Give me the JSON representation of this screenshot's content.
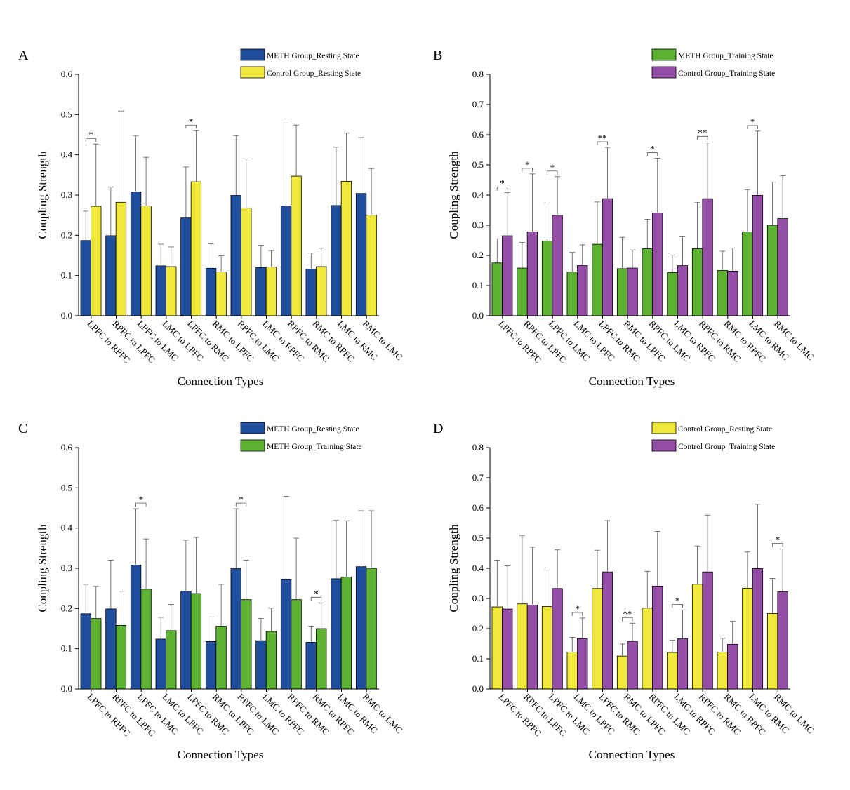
{
  "colors": {
    "meth_rest": "#1f4e9c",
    "ctrl_rest": "#f0e83a",
    "meth_train": "#5db133",
    "ctrl_train": "#944ea6"
  },
  "chart_data": [
    {
      "type": "bar",
      "panel_label": "A",
      "categories": [
        "LPFC to RPFC",
        "RPFC to LPFC",
        "LPFC to LMC",
        "LMC to LPFC",
        "LPFC to RMC",
        "RMC to LPFC",
        "RPFC to LMC",
        "LMC to RPFC",
        "RPFC to RMC",
        "RMC to RPFC",
        "LMC to RMC",
        "RMC to LMC"
      ],
      "xlabel": "Connection Types",
      "ylabel": "Coupling Strength",
      "ylim": [
        0,
        0.6
      ],
      "yticks": [
        "0.0",
        "0.1",
        "0.2",
        "0.3",
        "0.4",
        "0.5",
        "0.6"
      ],
      "ytick_values": [
        0,
        0.1,
        0.2,
        0.3,
        0.4,
        0.5,
        0.6
      ],
      "legend_position": "top-right",
      "series": [
        {
          "name": "METH Group_Resting State",
          "color_key": "meth_rest",
          "values": [
            0.187,
            0.199,
            0.308,
            0.124,
            0.243,
            0.118,
            0.299,
            0.12,
            0.273,
            0.116,
            0.274,
            0.304
          ],
          "errors": [
            0.073,
            0.121,
            0.14,
            0.054,
            0.127,
            0.061,
            0.149,
            0.055,
            0.206,
            0.04,
            0.145,
            0.139
          ]
        },
        {
          "name": "Control Group_Resting State",
          "color_key": "ctrl_rest",
          "values": [
            0.272,
            0.282,
            0.273,
            0.122,
            0.333,
            0.109,
            0.268,
            0.121,
            0.347,
            0.122,
            0.334,
            0.25
          ],
          "errors": [
            0.155,
            0.227,
            0.121,
            0.049,
            0.127,
            0.04,
            0.122,
            0.041,
            0.127,
            0.046,
            0.12,
            0.116
          ]
        }
      ],
      "significance": [
        {
          "index": 0,
          "label": "*"
        },
        {
          "index": 4,
          "label": "*"
        }
      ]
    },
    {
      "type": "bar",
      "panel_label": "B",
      "categories": [
        "LPFC to RPFC",
        "RPFC to LPFC",
        "LPFC to LMC",
        "LMC to LPFC",
        "LPFC to RMC",
        "RMC to LPFC",
        "RPFC to LMC",
        "LMC to RPFC",
        "RPFC to RMC",
        "RMC to RPFC",
        "LMC to RMC",
        "RMC to LMC"
      ],
      "xlabel": "Connection Types",
      "ylabel": "Coupling Strength",
      "ylim": [
        0,
        0.8
      ],
      "yticks": [
        "0.0",
        "0.1",
        "0.2",
        "0.3",
        "0.4",
        "0.5",
        "0.6",
        "0.7",
        "0.8"
      ],
      "ytick_values": [
        0,
        0.1,
        0.2,
        0.3,
        0.4,
        0.5,
        0.6,
        0.7,
        0.8
      ],
      "legend_position": "top-right",
      "series": [
        {
          "name": "METH Group_Training State",
          "color_key": "meth_train",
          "values": [
            0.175,
            0.158,
            0.248,
            0.145,
            0.237,
            0.156,
            0.222,
            0.143,
            0.222,
            0.15,
            0.278,
            0.3
          ],
          "errors": [
            0.08,
            0.085,
            0.125,
            0.065,
            0.14,
            0.104,
            0.098,
            0.058,
            0.153,
            0.064,
            0.14,
            0.143
          ]
        },
        {
          "name": "Control Group_Training State",
          "color_key": "ctrl_train",
          "values": [
            0.265,
            0.278,
            0.333,
            0.167,
            0.388,
            0.158,
            0.341,
            0.166,
            0.388,
            0.148,
            0.399,
            0.322
          ],
          "errors": [
            0.143,
            0.192,
            0.128,
            0.068,
            0.17,
            0.06,
            0.181,
            0.096,
            0.188,
            0.076,
            0.213,
            0.142
          ]
        }
      ],
      "significance": [
        {
          "index": 0,
          "label": "*"
        },
        {
          "index": 1,
          "label": "*"
        },
        {
          "index": 2,
          "label": "*"
        },
        {
          "index": 4,
          "label": "**"
        },
        {
          "index": 6,
          "label": "*"
        },
        {
          "index": 8,
          "label": "**"
        },
        {
          "index": 10,
          "label": "*"
        }
      ]
    },
    {
      "type": "bar",
      "panel_label": "C",
      "categories": [
        "LPFC to RPFC",
        "RPFC to LPFC",
        "LPFC to LMC",
        "LMC to LPFC",
        "LPFC to RMC",
        "RMC to LPFC",
        "RPFC to LMC",
        "LMC to RPFC",
        "RPFC to RMC",
        "RMC to RPFC",
        "LMC to RMC",
        "RMC to LMC"
      ],
      "xlabel": "Connection Types",
      "ylabel": "Coupling Strength",
      "ylim": [
        0,
        0.6
      ],
      "yticks": [
        "0.0",
        "0.1",
        "0.2",
        "0.3",
        "0.4",
        "0.5",
        "0.6"
      ],
      "ytick_values": [
        0,
        0.1,
        0.2,
        0.3,
        0.4,
        0.5,
        0.6
      ],
      "legend_position": "top-right",
      "series": [
        {
          "name": "METH Group_Resting State",
          "color_key": "meth_rest",
          "values": [
            0.187,
            0.199,
            0.308,
            0.124,
            0.243,
            0.118,
            0.299,
            0.12,
            0.273,
            0.116,
            0.274,
            0.304
          ],
          "errors": [
            0.073,
            0.121,
            0.14,
            0.054,
            0.127,
            0.061,
            0.149,
            0.055,
            0.206,
            0.04,
            0.145,
            0.139
          ]
        },
        {
          "name": "METH Group_Training State",
          "color_key": "meth_train",
          "values": [
            0.175,
            0.158,
            0.248,
            0.145,
            0.237,
            0.156,
            0.222,
            0.143,
            0.222,
            0.15,
            0.278,
            0.3
          ],
          "errors": [
            0.08,
            0.085,
            0.125,
            0.065,
            0.14,
            0.104,
            0.098,
            0.058,
            0.153,
            0.064,
            0.14,
            0.143
          ]
        }
      ],
      "significance": [
        {
          "index": 2,
          "label": "*"
        },
        {
          "index": 6,
          "label": "*"
        },
        {
          "index": 9,
          "label": "*"
        }
      ]
    },
    {
      "type": "bar",
      "panel_label": "D",
      "categories": [
        "LPFC to RPFC",
        "RPFC to LPFC",
        "LPFC to LMC",
        "LMC to LPFC",
        "LPFC to RMC",
        "RMC to LPFC",
        "RPFC to LMC",
        "LMC to RPFC",
        "RPFC to RMC",
        "RMC to RPFC",
        "LMC to RMC",
        "RMC to LMC"
      ],
      "xlabel": "Connection Types",
      "ylabel": "Coupling Strength",
      "ylim": [
        0,
        0.8
      ],
      "yticks": [
        "0.0",
        "0.1",
        "0.2",
        "0.3",
        "0.4",
        "0.5",
        "0.6",
        "0.7",
        "0.8"
      ],
      "ytick_values": [
        0,
        0.1,
        0.2,
        0.3,
        0.4,
        0.5,
        0.6,
        0.7,
        0.8
      ],
      "legend_position": "top-right",
      "series": [
        {
          "name": "Control Group_Resting State",
          "color_key": "ctrl_rest",
          "values": [
            0.272,
            0.282,
            0.273,
            0.122,
            0.333,
            0.109,
            0.268,
            0.121,
            0.347,
            0.122,
            0.334,
            0.25
          ],
          "errors": [
            0.155,
            0.227,
            0.121,
            0.049,
            0.127,
            0.04,
            0.122,
            0.041,
            0.127,
            0.046,
            0.12,
            0.116
          ]
        },
        {
          "name": "Control Group_Training State",
          "color_key": "ctrl_train",
          "values": [
            0.265,
            0.278,
            0.333,
            0.167,
            0.388,
            0.158,
            0.341,
            0.166,
            0.388,
            0.148,
            0.399,
            0.322
          ],
          "errors": [
            0.143,
            0.192,
            0.128,
            0.068,
            0.17,
            0.06,
            0.181,
            0.096,
            0.188,
            0.076,
            0.213,
            0.142
          ]
        }
      ],
      "significance": [
        {
          "index": 3,
          "label": "*"
        },
        {
          "index": 5,
          "label": "**"
        },
        {
          "index": 7,
          "label": "*"
        },
        {
          "index": 11,
          "label": "*"
        }
      ]
    }
  ]
}
